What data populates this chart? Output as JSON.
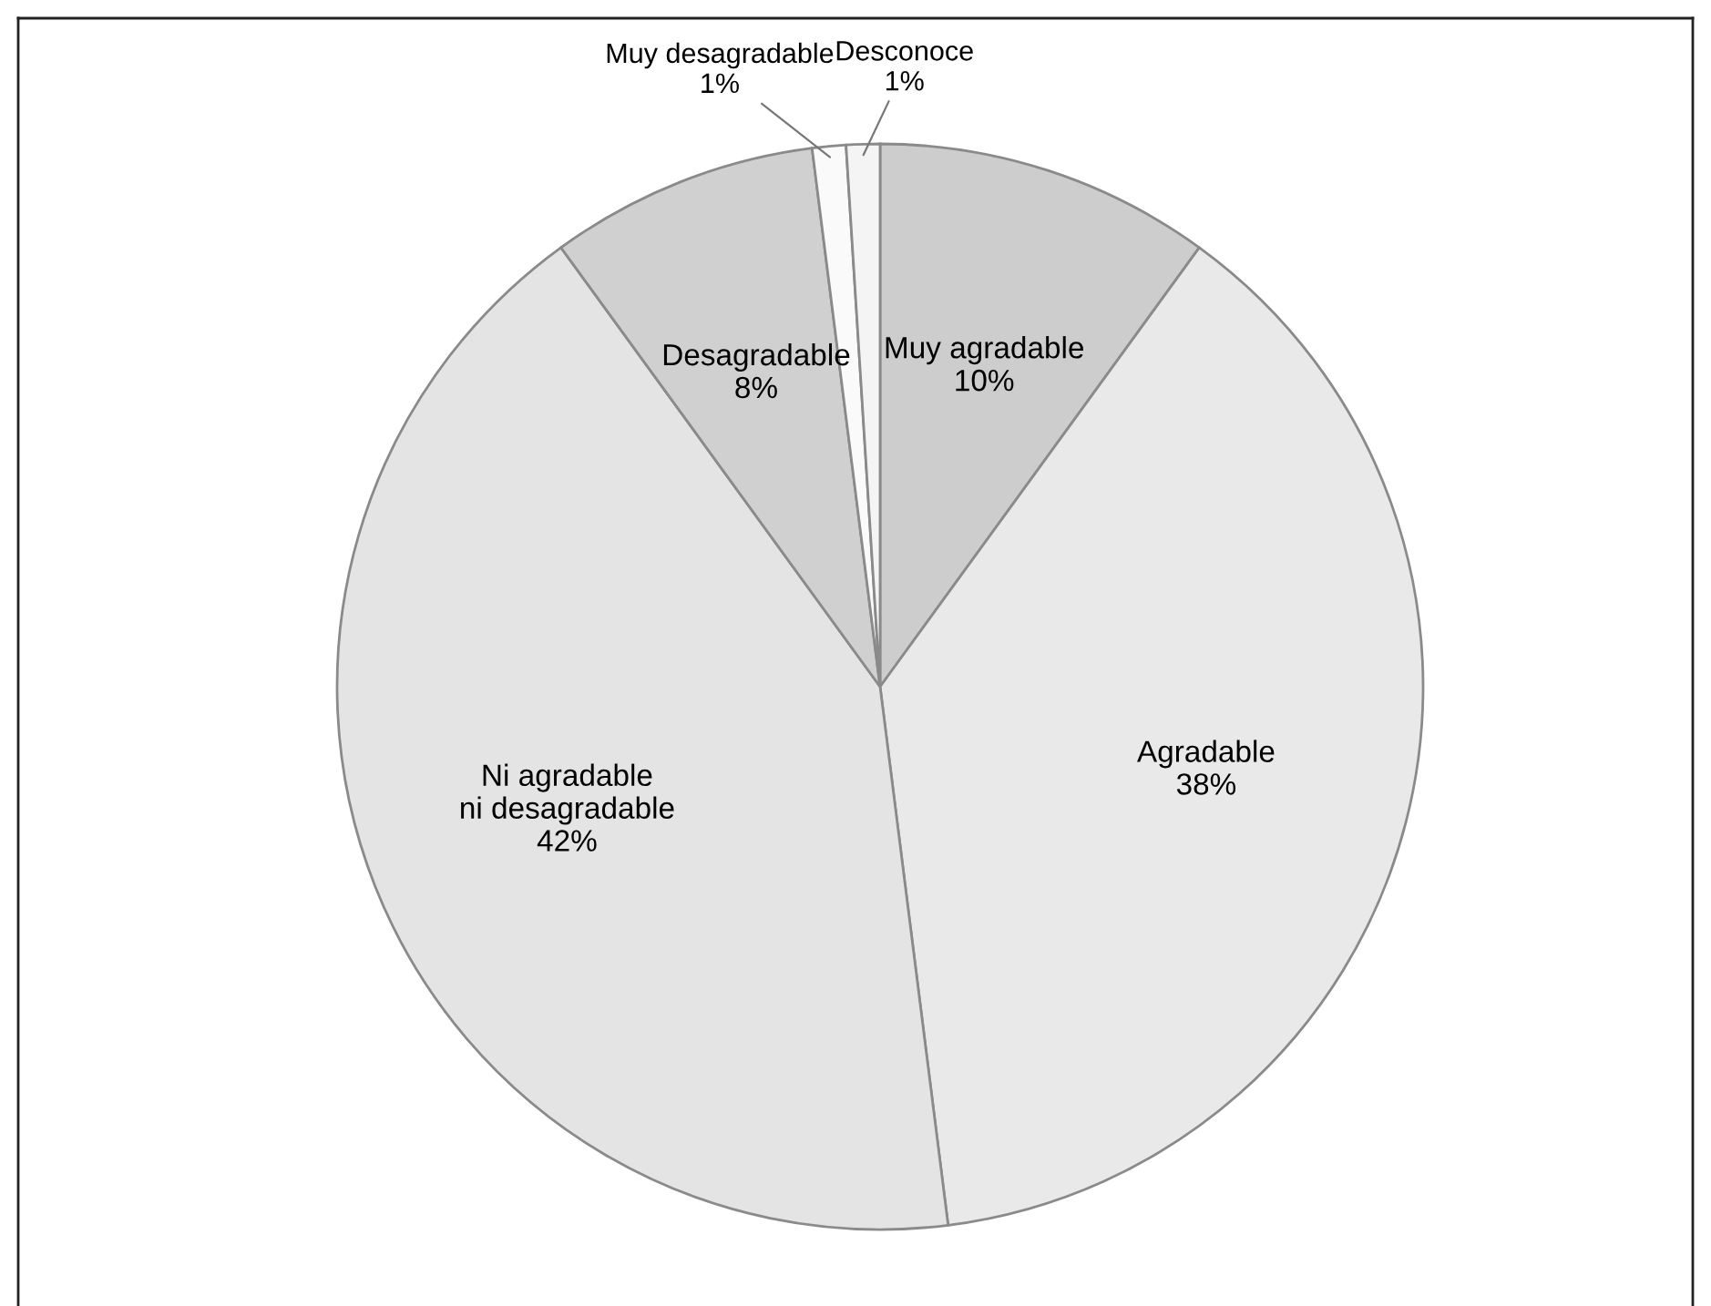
{
  "chart_data": {
    "type": "pie",
    "categories": [
      "Muy agradable",
      "Agradable",
      "Ni agradable\nni desagradable",
      "Desagradable",
      "Muy desagradable",
      "Desconoce"
    ],
    "values": [
      10,
      38,
      42,
      8,
      1,
      1
    ],
    "value_labels": [
      "10%",
      "38%",
      "42%",
      "8%",
      "1%",
      "1%"
    ],
    "colors": [
      "#cdcdcd",
      "#e9e9e9",
      "#e4e4e4",
      "#d0d0d0",
      "#fafafa",
      "#f4f4f4"
    ],
    "legend": false
  }
}
